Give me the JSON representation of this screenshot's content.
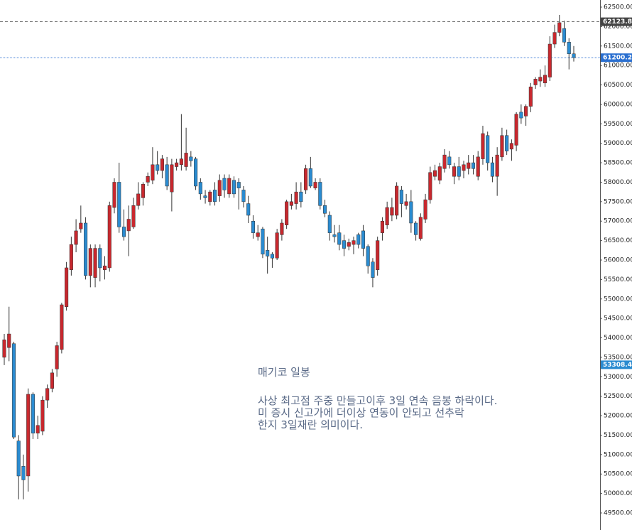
{
  "chart_data": {
    "type": "candlestick",
    "up_color": "#c8282e",
    "down_color": "#2a8bd0",
    "ylim": [
      49500,
      62500
    ],
    "yticks": [
      {
        "value": 49500,
        "label": "49500.00"
      },
      {
        "value": 50000,
        "label": "50000.00"
      },
      {
        "value": 50500,
        "label": "50500.00"
      },
      {
        "value": 51000,
        "label": "51000.00"
      },
      {
        "value": 51500,
        "label": "51500.00"
      },
      {
        "value": 52000,
        "label": "52000.00"
      },
      {
        "value": 52500,
        "label": "52500.00"
      },
      {
        "value": 53000,
        "label": "53000.00"
      },
      {
        "value": 53500,
        "label": "53500.00"
      },
      {
        "value": 54000,
        "label": "54000.00"
      },
      {
        "value": 54500,
        "label": "54500.00"
      },
      {
        "value": 55000,
        "label": "55000.00"
      },
      {
        "value": 55500,
        "label": "55500.00"
      },
      {
        "value": 56000,
        "label": "56000.00"
      },
      {
        "value": 56500,
        "label": "56500.00"
      },
      {
        "value": 57000,
        "label": "57000.00"
      },
      {
        "value": 57500,
        "label": "57500.00"
      },
      {
        "value": 58000,
        "label": "58000.00"
      },
      {
        "value": 58500,
        "label": "58500.00"
      },
      {
        "value": 59000,
        "label": "59000.00"
      },
      {
        "value": 59500,
        "label": "59500.00"
      },
      {
        "value": 60000,
        "label": "60000.00"
      },
      {
        "value": 60500,
        "label": "60500.00"
      },
      {
        "value": 61000,
        "label": "61000.00"
      },
      {
        "value": 61500,
        "label": "61500.00"
      },
      {
        "value": 62000,
        "label": "62000.00"
      },
      {
        "value": 62500,
        "label": "62500.00"
      }
    ],
    "price_lines": [
      {
        "value": 62123.8,
        "label": "62123.8",
        "color": "#444444",
        "line": "dashed"
      },
      {
        "value": 61200.2,
        "label": "61200.2",
        "color": "#2a6fd0",
        "line": "dotted"
      },
      {
        "value": 53308.4,
        "label": "53308.4",
        "color": "#2a8bd0",
        "line": "none"
      }
    ],
    "annotation": {
      "title": "매기코 일봉",
      "lines": [
        "사상 최고점 주중 만들고이후 3일 연속 음봉 하락이다.",
        "미 증시 신고가에 더이상 연동이 안되고 선추락",
        "한지 3일재란 의미이다."
      ]
    },
    "open": [
      53500,
      53750,
      53850,
      51350,
      50700,
      50450,
      52550,
      51550,
      51600,
      52400,
      52700,
      53200,
      53700,
      54800,
      55750,
      56400,
      56800,
      56950,
      55600,
      55550,
      56300,
      55750,
      55800,
      57350,
      58000,
      56850,
      56750,
      56850,
      57400,
      57600,
      58000,
      58050,
      58450,
      58300,
      58450,
      57750,
      58400,
      58450,
      58400,
      58650,
      58600,
      58000,
      57650,
      57500,
      57800,
      57650,
      58100,
      57700,
      58050,
      58000,
      57800,
      57450,
      57000,
      56600,
      56800,
      56250,
      56150,
      56050,
      56650,
      56900,
      57400,
      57450,
      57750,
      57800,
      58350,
      57850,
      58000,
      57400,
      57150,
      56650,
      56700,
      56500,
      56350,
      56400,
      56650,
      56750,
      56350,
      55950,
      55750,
      56700,
      56900,
      57150,
      57150,
      57800,
      57400,
      57500,
      56950,
      56550,
      57050,
      57550,
      58150,
      58050,
      58350,
      58650,
      58150,
      58400,
      58300,
      58350,
      58500,
      58150,
      58600,
      59200,
      58500,
      58150,
      58650,
      59200,
      58850,
      58950,
      59800,
      59700,
      59950,
      60500,
      60600,
      60550,
      60700,
      61550,
      61850,
      61950,
      61600,
      61300
    ],
    "high": [
      54100,
      54800,
      53900,
      51500,
      51000,
      52700,
      52600,
      52000,
      52500,
      52800,
      53200,
      53900,
      54900,
      55950,
      56600,
      57050,
      57400,
      57100,
      56400,
      56400,
      56400,
      56100,
      57500,
      58100,
      58500,
      57300,
      57400,
      57600,
      58000,
      58000,
      58250,
      58900,
      58800,
      58700,
      58650,
      58600,
      58600,
      59750,
      59400,
      58800,
      58650,
      58100,
      57800,
      57800,
      58000,
      58200,
      58200,
      58200,
      58150,
      58100,
      57900,
      57650,
      57150,
      56900,
      56850,
      56600,
      56200,
      56800,
      57050,
      57550,
      57700,
      58000,
      58000,
      58450,
      58650,
      58100,
      58100,
      57550,
      57250,
      56900,
      56900,
      56650,
      56550,
      56600,
      56700,
      56900,
      56400,
      56050,
      56600,
      57100,
      57500,
      57600,
      58000,
      57900,
      57700,
      57800,
      57000,
      57200,
      57700,
      58400,
      58450,
      58500,
      58850,
      58800,
      58500,
      58650,
      58550,
      58700,
      58700,
      58800,
      59450,
      59300,
      58650,
      58900,
      59400,
      59350,
      59100,
      59800,
      60000,
      60000,
      60550,
      60700,
      60900,
      61000,
      61750,
      62050,
      62300,
      62150,
      61700,
      61500
    ],
    "low": [
      53300,
      53400,
      51400,
      49850,
      49850,
      50050,
      51400,
      51400,
      51500,
      52200,
      52600,
      53000,
      53600,
      54700,
      55600,
      56200,
      56700,
      55500,
      55300,
      55300,
      55450,
      55500,
      55700,
      57200,
      56700,
      56500,
      56100,
      56800,
      57300,
      57400,
      57900,
      57950,
      58200,
      58100,
      57800,
      57250,
      58300,
      58300,
      58300,
      58400,
      57800,
      57550,
      57450,
      57400,
      57400,
      57500,
      57600,
      57600,
      57600,
      57300,
      57350,
      56950,
      56550,
      56500,
      56050,
      55650,
      55800,
      56000,
      56500,
      56800,
      57300,
      57300,
      57350,
      57700,
      57850,
      57800,
      57300,
      57100,
      56500,
      56450,
      56250,
      56100,
      56250,
      56150,
      56300,
      56100,
      55650,
      55300,
      55600,
      56500,
      56800,
      57000,
      57050,
      57100,
      57300,
      56700,
      56500,
      56500,
      56950,
      57450,
      58050,
      57950,
      58250,
      58350,
      57950,
      58050,
      58100,
      58200,
      58200,
      58050,
      58450,
      58300,
      58000,
      57650,
      58550,
      58700,
      58550,
      58800,
      59500,
      59450,
      59800,
      60400,
      60450,
      60450,
      60600,
      61450,
      61750,
      61500,
      60900,
      61100
    ],
    "close": [
      53950,
      54100,
      51450,
      50450,
      50350,
      52550,
      51550,
      51750,
      52400,
      52700,
      53100,
      53800,
      54850,
      55800,
      56400,
      56750,
      56950,
      55600,
      56300,
      56300,
      55800,
      55850,
      57400,
      58000,
      56850,
      56600,
      57050,
      57400,
      57700,
      57950,
      58150,
      58450,
      58300,
      58600,
      57900,
      58450,
      58500,
      58600,
      58750,
      58550,
      57900,
      57700,
      57600,
      57750,
      57500,
      58050,
      57800,
      58100,
      57700,
      57850,
      57500,
      57150,
      56700,
      56700,
      56150,
      56100,
      56050,
      56700,
      56950,
      57500,
      57500,
      57750,
      57500,
      58350,
      57900,
      58000,
      57400,
      57200,
      56700,
      56600,
      56400,
      56300,
      56450,
      56500,
      56400,
      56300,
      55850,
      55550,
      56500,
      57000,
      57350,
      57350,
      57900,
      57450,
      57500,
      56950,
      56650,
      57100,
      57550,
      58250,
      58300,
      58400,
      58700,
      58450,
      58400,
      58150,
      58450,
      58500,
      58350,
      58650,
      59250,
      58500,
      58150,
      58700,
      59200,
      58800,
      59000,
      59750,
      59650,
      59950,
      60450,
      60650,
      60700,
      60750,
      61550,
      61850,
      62100,
      61600,
      61300,
      61200
    ]
  }
}
